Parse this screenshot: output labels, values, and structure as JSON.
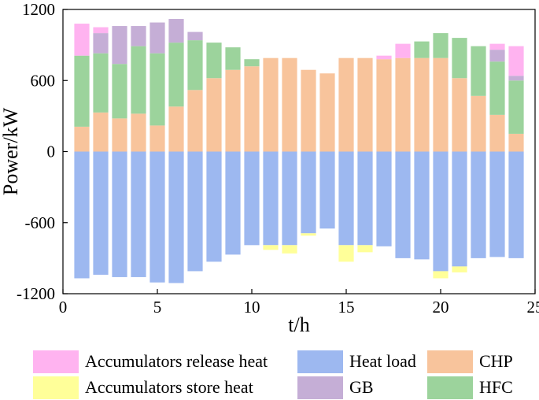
{
  "chart_data": {
    "type": "bar",
    "stacked": true,
    "xlabel": "t/h",
    "ylabel": "Power/kW",
    "xlim": [
      0,
      25
    ],
    "ylim": [
      -1200,
      1200
    ],
    "xticks": [
      0,
      5,
      10,
      15,
      20,
      25
    ],
    "yticks": [
      1200,
      600,
      0,
      -600,
      -1200
    ],
    "x": [
      1,
      2,
      3,
      4,
      5,
      6,
      7,
      8,
      9,
      10,
      11,
      12,
      13,
      14,
      15,
      16,
      17,
      18,
      19,
      20,
      21,
      22,
      23,
      24
    ],
    "series": [
      {
        "name": "Heat load",
        "color": "#9db8f0",
        "values": [
          -1070,
          -1040,
          -1060,
          -1060,
          -1105,
          -1110,
          -1010,
          -930,
          -870,
          -790,
          -790,
          -790,
          -690,
          -650,
          -790,
          -790,
          -800,
          -900,
          -910,
          -1010,
          -970,
          -900,
          -890,
          -900
        ]
      },
      {
        "name": "Accumulators store heat",
        "color": "#ffff99",
        "values": [
          0,
          0,
          0,
          0,
          0,
          0,
          0,
          0,
          0,
          0,
          -40,
          -70,
          -20,
          0,
          -140,
          -60,
          0,
          0,
          0,
          -60,
          -50,
          0,
          0,
          0
        ]
      },
      {
        "name": "CHP",
        "color": "#f8c49c",
        "values": [
          210,
          330,
          280,
          320,
          220,
          380,
          520,
          620,
          690,
          720,
          790,
          790,
          690,
          660,
          790,
          790,
          780,
          790,
          790,
          790,
          620,
          470,
          310,
          150
        ]
      },
      {
        "name": "HFC",
        "color": "#9cd39c",
        "values": [
          600,
          500,
          460,
          570,
          610,
          540,
          420,
          300,
          190,
          60,
          0,
          0,
          0,
          0,
          0,
          0,
          0,
          0,
          140,
          210,
          340,
          420,
          450,
          450
        ]
      },
      {
        "name": "GB",
        "color": "#c5aed6",
        "values": [
          0,
          170,
          320,
          170,
          260,
          200,
          70,
          0,
          0,
          0,
          0,
          0,
          0,
          0,
          0,
          0,
          0,
          0,
          0,
          0,
          0,
          0,
          100,
          40
        ]
      },
      {
        "name": "Accumulators release heat",
        "color": "#ffb3f0",
        "values": [
          270,
          50,
          0,
          0,
          0,
          0,
          0,
          0,
          0,
          0,
          0,
          0,
          0,
          0,
          0,
          0,
          30,
          120,
          0,
          0,
          0,
          0,
          50,
          250
        ]
      }
    ],
    "legend": {
      "placement": "bottom",
      "entries": [
        "Accumulators release heat",
        "Heat load",
        "CHP",
        "Accumulators store heat",
        "GB",
        "HFC"
      ]
    }
  }
}
